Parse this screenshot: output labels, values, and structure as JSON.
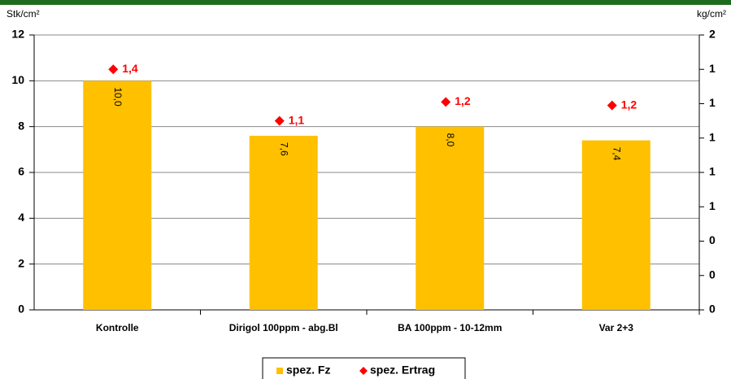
{
  "chart_data": {
    "type": "bar",
    "y_axis_label": "Stk/cm²",
    "y2_axis_label": "kg/cm²",
    "categories": [
      "Kontrolle",
      "Dirigol 100ppm - abg.Bl",
      "BA 100ppm - 10-12mm",
      "Var 2+3"
    ],
    "series": [
      {
        "name": "spez. Fz",
        "color": "#ffc000",
        "values": [
          10.0,
          7.6,
          8.0,
          7.4
        ],
        "value_labels": [
          "10,0",
          "7,6",
          "8,0",
          "7,4"
        ]
      },
      {
        "name": "spez. Ertrag",
        "type": "scatter",
        "axis": "y2",
        "color": "#ff0000",
        "values": [
          1.4,
          1.1,
          1.21,
          1.19
        ],
        "value_labels": [
          "1,4",
          "1,1",
          "1,2",
          "1,2"
        ]
      }
    ],
    "ylim": [
      0,
      12
    ],
    "yticks": [
      0,
      2,
      4,
      6,
      8,
      10,
      12
    ],
    "y2lim": [
      0,
      1.6
    ],
    "y2ticks": [
      0,
      {
        "value": 0.2,
        "label": "0"
      },
      {
        "value": 0.4,
        "label": "0"
      },
      {
        "value": 0.6,
        "label": "1"
      },
      {
        "value": 0.8,
        "label": "1"
      },
      1,
      {
        "value": 1.2,
        "label": "1"
      },
      {
        "value": 1.4,
        "label": "1"
      },
      {
        "value": 1.6,
        "label": "2"
      }
    ],
    "grid": true,
    "legend": "bottom"
  }
}
